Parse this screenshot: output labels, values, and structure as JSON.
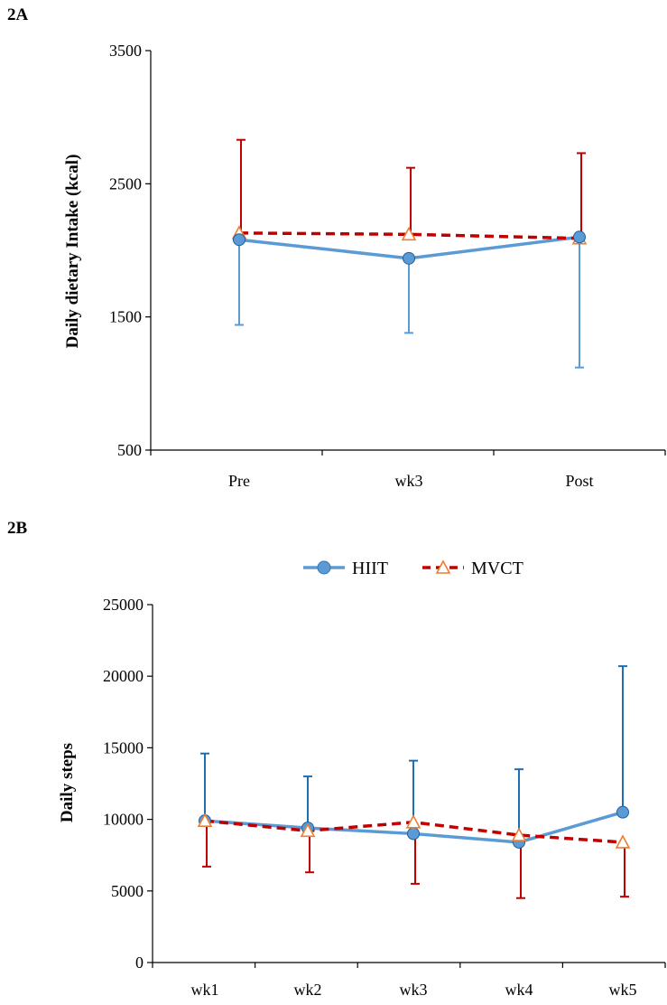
{
  "colors": {
    "hiit": "#5b9bd5",
    "hiit_err_a": "#5b9bd5",
    "hiit_err_b": "#1f6fb5",
    "mvct": "#c00000",
    "mvct_marker": "#ed7d31"
  },
  "chart_data": [
    {
      "type": "line",
      "panel_label": "2A",
      "title": "",
      "xlabel": "",
      "ylabel": "Daily dietary Intake (kcal)",
      "categories": [
        "Pre",
        "wk3",
        "Post"
      ],
      "ylim": [
        500,
        3500
      ],
      "yticks": [
        500,
        1500,
        2500,
        3500
      ],
      "legend": "none",
      "grid": false,
      "series": [
        {
          "name": "HIIT",
          "marker": "filled-circle",
          "line": "solid",
          "values": [
            2080,
            1940,
            2100
          ],
          "error_low": [
            1440,
            1380,
            1120
          ],
          "error_high": [
            2080,
            1940,
            2100
          ]
        },
        {
          "name": "MVCT",
          "marker": "open-triangle",
          "line": "dashed",
          "values": [
            2130,
            2120,
            2090
          ],
          "error_low": [
            2130,
            2120,
            2090
          ],
          "error_high": [
            2830,
            2620,
            2730
          ]
        }
      ]
    },
    {
      "type": "line",
      "panel_label": "2B",
      "title": "",
      "xlabel": "",
      "ylabel": "Daily steps",
      "categories": [
        "wk1",
        "wk2",
        "wk3",
        "wk4",
        "wk5"
      ],
      "ylim": [
        0,
        25000
      ],
      "yticks": [
        0,
        5000,
        10000,
        15000,
        20000,
        25000
      ],
      "legend": "top-center",
      "grid": false,
      "series": [
        {
          "name": "HIIT",
          "marker": "filled-circle",
          "line": "solid",
          "values": [
            9900,
            9400,
            9000,
            8400,
            10500
          ],
          "error_low": [
            9900,
            9400,
            9000,
            8400,
            10500
          ],
          "error_high": [
            14600,
            13000,
            14100,
            13500,
            20700
          ]
        },
        {
          "name": "MVCT",
          "marker": "open-triangle",
          "line": "dashed",
          "values": [
            9900,
            9200,
            9800,
            8900,
            8400
          ],
          "error_low": [
            6700,
            6300,
            5500,
            4500,
            4600
          ],
          "error_high": [
            9900,
            9200,
            9800,
            8900,
            8400
          ]
        }
      ]
    }
  ]
}
